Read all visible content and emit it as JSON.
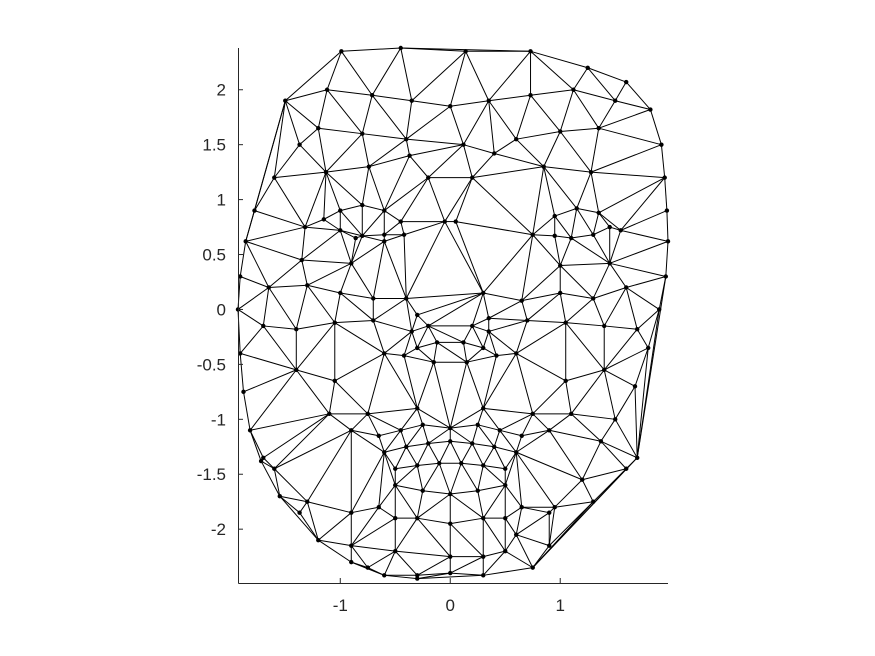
{
  "chart_data": {
    "type": "scatter",
    "title": "",
    "xlabel": "",
    "ylabel": "",
    "xlim": [
      -1.93,
      1.98
    ],
    "ylim": [
      -2.49,
      2.38
    ],
    "xticks": [
      -1,
      0,
      1
    ],
    "xtick_labels": [
      "-1",
      "0",
      "1"
    ],
    "yticks": [
      2,
      1.5,
      1,
      0.5,
      0,
      -0.5,
      -1,
      -1.5,
      -2
    ],
    "ytick_labels": [
      "2",
      "1.5",
      "1",
      "0.5",
      "0",
      "-0.5",
      "-1",
      "-1.5",
      "-2"
    ],
    "grid": false,
    "legend": "none",
    "colors": {
      "mesh": "#000000",
      "axes": "#262626",
      "background": "#ffffff"
    },
    "series": [
      {
        "marker": "dot",
        "x": [
          -0.99,
          -0.45,
          0.14,
          0.73,
          1.25,
          1.6,
          1.82,
          1.92,
          1.95,
          1.97,
          1.98,
          1.96,
          1.9,
          1.8,
          1.68,
          1.5,
          1.37,
          1.2,
          0.95,
          0.6,
          0.3,
          0.0,
          -0.3,
          -0.6,
          -0.9,
          -1.2,
          -1.37,
          -1.55,
          -1.72,
          -1.82,
          -1.88,
          -1.91,
          -1.93,
          -1.91,
          -1.86,
          -1.78,
          -1.6,
          -1.37,
          -1.5,
          -1.12,
          -0.71,
          -0.35,
          0.0,
          0.35,
          0.73,
          1.12,
          1.5,
          -1.2,
          -0.8,
          -0.4,
          0.12,
          0.6,
          1.0,
          1.35,
          -1.13,
          -0.74,
          -0.37,
          0.4,
          0.85,
          1.28,
          -1.32,
          -0.86,
          -0.6,
          -0.42,
          -1.15,
          -1.0,
          -0.8,
          -0.6,
          -0.45,
          -1.0,
          -0.8,
          -0.6,
          0.75,
          0.95,
          1.1,
          1.3,
          1.45,
          1.55,
          0.95,
          1.15,
          1.35,
          -0.9,
          -1.35,
          1.0,
          1.45,
          -1.65,
          -1.3,
          -1.0,
          -0.7,
          -0.4,
          0.3,
          0.65,
          1.0,
          1.3,
          1.6,
          -1.7,
          -1.4,
          -1.05,
          -0.7,
          -0.3,
          0.35,
          0.7,
          1.05,
          1.4,
          1.7,
          -0.12,
          0.12,
          -0.3,
          0.3,
          -0.42,
          0.42,
          -0.35,
          -0.15,
          0.15,
          0.35,
          -0.05,
          0.05,
          -0.2,
          0.2,
          -0.65,
          -0.45,
          -0.25,
          0.0,
          0.25,
          0.45,
          0.65,
          -0.6,
          -0.4,
          -0.2,
          0.0,
          0.2,
          0.4,
          0.6,
          -0.5,
          -0.3,
          -0.1,
          0.1,
          0.3,
          0.5,
          -0.5,
          -0.25,
          0.0,
          0.25,
          0.5,
          -1.4,
          -1.05,
          1.05,
          1.4,
          -1.1,
          1.1,
          -0.9,
          0.9,
          -0.75,
          0.75,
          -0.3,
          0.3,
          -1.3,
          -0.9,
          -0.5,
          0.5,
          0.9,
          1.3,
          -0.9,
          -0.5,
          0.0,
          0.5,
          0.9,
          -0.75,
          0.75,
          -0.3,
          0.3,
          -0.65,
          -0.3,
          0.0,
          0.3,
          0.65,
          0.6,
          -0.6,
          0.2,
          -0.2,
          1.6,
          -1.6,
          1.7,
          -1.7
        ],
        "y": [
          2.35,
          2.38,
          2.35,
          2.35,
          2.2,
          2.07,
          1.82,
          1.5,
          1.2,
          0.9,
          0.62,
          0.3,
          0.0,
          -0.35,
          -0.7,
          -1.0,
          -1.2,
          -1.55,
          -1.8,
          -2.05,
          -2.25,
          -2.4,
          -2.45,
          -2.42,
          -2.3,
          -2.1,
          -1.85,
          -1.7,
          -1.38,
          -1.1,
          -0.75,
          -0.4,
          0.0,
          0.3,
          0.62,
          0.9,
          1.2,
          1.5,
          1.9,
          2.0,
          1.95,
          1.9,
          1.85,
          1.9,
          1.95,
          2.0,
          1.9,
          1.65,
          1.6,
          1.55,
          1.5,
          1.55,
          1.62,
          1.65,
          1.25,
          1.3,
          1.4,
          1.42,
          1.3,
          1.25,
          0.75,
          0.65,
          0.62,
          0.68,
          0.82,
          0.9,
          0.95,
          0.9,
          0.8,
          0.72,
          0.67,
          0.68,
          0.68,
          0.67,
          0.65,
          0.68,
          0.75,
          0.72,
          0.85,
          0.92,
          0.88,
          0.42,
          0.45,
          0.4,
          0.42,
          0.2,
          0.22,
          0.15,
          0.1,
          0.1,
          0.15,
          0.08,
          0.15,
          0.1,
          0.2,
          -0.15,
          -0.18,
          -0.12,
          -0.1,
          -0.05,
          -0.08,
          -0.1,
          -0.12,
          -0.15,
          -0.18,
          -0.3,
          -0.3,
          -0.35,
          -0.35,
          -0.42,
          -0.42,
          -0.2,
          -0.48,
          -0.48,
          -0.2,
          0.8,
          0.8,
          1.2,
          1.2,
          -1.15,
          -1.1,
          -1.05,
          -1.08,
          -1.05,
          -1.1,
          -1.15,
          -1.3,
          -1.25,
          -1.22,
          -1.2,
          -1.22,
          -1.25,
          -1.3,
          -1.45,
          -1.42,
          -1.4,
          -1.4,
          -1.42,
          -1.45,
          -1.6,
          -1.65,
          -1.68,
          -1.65,
          -1.6,
          -0.55,
          -0.65,
          -0.65,
          -0.55,
          -0.95,
          -0.95,
          -1.1,
          -1.1,
          -0.95,
          -0.95,
          -0.9,
          -0.9,
          -1.75,
          -1.85,
          -1.9,
          -1.9,
          -1.85,
          -1.75,
          -2.15,
          -2.2,
          -2.25,
          -2.2,
          -2.15,
          -2.35,
          -2.35,
          -2.42,
          -2.42,
          -1.8,
          -1.9,
          -1.95,
          -1.9,
          -1.8,
          -0.4,
          -0.4,
          -0.15,
          -0.15,
          -1.45,
          -1.45,
          -1.35,
          -1.35
        ]
      }
    ]
  }
}
